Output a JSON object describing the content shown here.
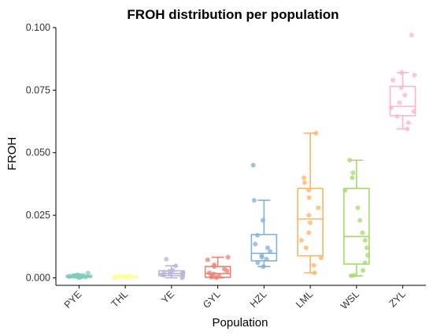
{
  "chart_data": {
    "type": "boxplot",
    "title": "FROH distribution per population",
    "xlabel": "Population",
    "ylabel": "FROH",
    "ylim": [
      -0.003,
      0.1
    ],
    "yticks": [
      0.0,
      0.025,
      0.05,
      0.075,
      0.1
    ],
    "ytick_labels": [
      "0.000",
      "0.025",
      "0.050",
      "0.075",
      "0.100"
    ],
    "grid": false,
    "legend": "none",
    "categories": [
      "PYE",
      "THL",
      "YE",
      "GYL",
      "HZL",
      "LML",
      "WSL",
      "ZYL"
    ],
    "colors": [
      "#7fcdbb",
      "#ffff99",
      "#bcb3d8",
      "#f07f72",
      "#80b1d3",
      "#fdb462",
      "#a6d96a",
      "#fbb4d2"
    ],
    "series": [
      {
        "category": "PYE",
        "min": 0.0,
        "q1": 0.0002,
        "median": 0.0005,
        "q3": 0.0009,
        "max": 0.0015,
        "points": [
          0.0001,
          0.0003,
          0.0005,
          0.0008,
          0.0012,
          0.0002,
          0.0006,
          0.0019,
          0.0004,
          0.001,
          0.0007,
          0.0003
        ]
      },
      {
        "category": "THL",
        "min": 0.0,
        "q1": 0.0001,
        "median": 0.0003,
        "q3": 0.0006,
        "max": 0.001,
        "points": [
          0.0001,
          0.0002,
          0.0004,
          0.0006,
          0.0009,
          0.0003,
          0.0005,
          0.0002,
          0.0007,
          0.0001
        ]
      },
      {
        "category": "YE",
        "min": 0.0,
        "q1": 0.0009,
        "median": 0.0017,
        "q3": 0.0028,
        "max": 0.0048,
        "points": [
          0.0,
          0.0005,
          0.0012,
          0.0015,
          0.0018,
          0.0022,
          0.0027,
          0.003,
          0.0048,
          0.0075,
          0.001,
          0.002
        ]
      },
      {
        "category": "GYL",
        "min": 0.0,
        "q1": 0.0002,
        "median": 0.0017,
        "q3": 0.0045,
        "max": 0.0082,
        "points": [
          0.0001,
          0.0003,
          0.0008,
          0.0015,
          0.002,
          0.0035,
          0.0045,
          0.0052,
          0.0072,
          0.0082,
          0.0005,
          0.0028
        ]
      },
      {
        "category": "HZL",
        "min": 0.0045,
        "q1": 0.0068,
        "median": 0.0098,
        "q3": 0.0173,
        "max": 0.031,
        "points": [
          0.0045,
          0.006,
          0.0075,
          0.009,
          0.0105,
          0.012,
          0.0135,
          0.017,
          0.023,
          0.031,
          0.045,
          0.0082
        ]
      },
      {
        "category": "LML",
        "min": 0.002,
        "q1": 0.0088,
        "median": 0.0235,
        "q3": 0.0357,
        "max": 0.0578,
        "points": [
          0.002,
          0.005,
          0.008,
          0.012,
          0.018,
          0.022,
          0.025,
          0.028,
          0.032,
          0.035,
          0.038,
          0.04,
          0.0578,
          0.015
        ]
      },
      {
        "category": "WSL",
        "min": 0.0008,
        "q1": 0.0055,
        "median": 0.0165,
        "q3": 0.0357,
        "max": 0.047,
        "points": [
          0.0008,
          0.003,
          0.006,
          0.009,
          0.012,
          0.015,
          0.018,
          0.023,
          0.028,
          0.035,
          0.04,
          0.042,
          0.047,
          0.001
        ]
      },
      {
        "category": "ZYL",
        "min": 0.0595,
        "q1": 0.0648,
        "median": 0.0685,
        "q3": 0.0765,
        "max": 0.082,
        "points": [
          0.0595,
          0.062,
          0.0645,
          0.0665,
          0.068,
          0.07,
          0.073,
          0.076,
          0.079,
          0.081,
          0.082,
          0.097
        ]
      }
    ]
  }
}
